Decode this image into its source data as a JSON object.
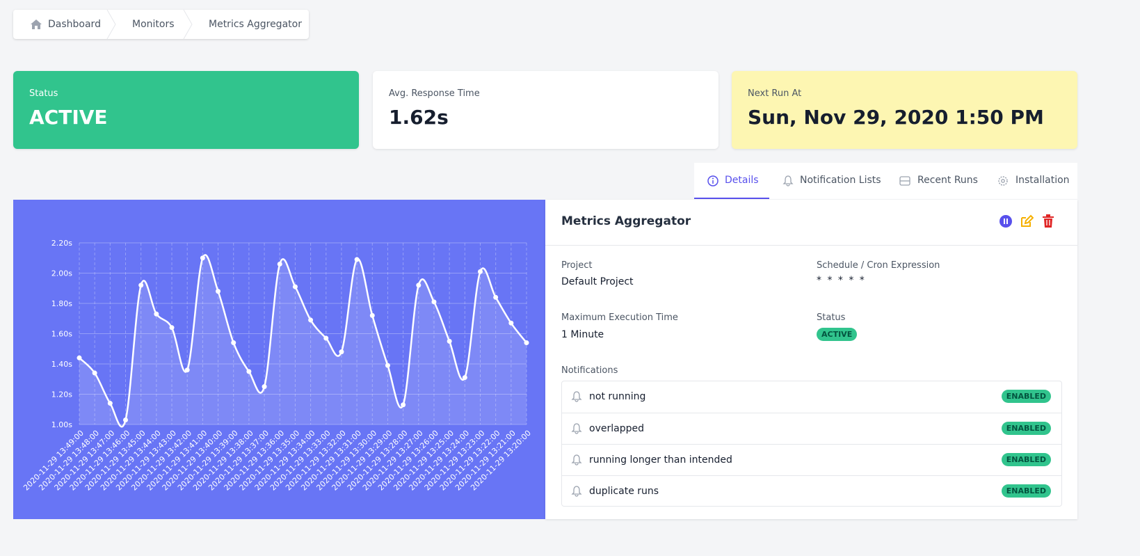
{
  "breadcrumbs": [
    "Dashboard",
    "Monitors",
    "Metrics Aggregator"
  ],
  "stats": [
    {
      "label": "Status",
      "value": "ACTIVE"
    },
    {
      "label": "Avg. Response Time",
      "value": "1.62s"
    },
    {
      "label": "Next Run At",
      "value": "Sun, Nov 29, 2020 1:50 PM"
    }
  ],
  "tabs": [
    "Details",
    "Notification Lists",
    "Recent Runs",
    "Installation"
  ],
  "details": {
    "title": "Metrics Aggregator",
    "fields": [
      {
        "label": "Project",
        "value": "Default Project"
      },
      {
        "label": "Schedule / Cron Expression",
        "value": "* * * * *"
      },
      {
        "label": "Maximum Execution Time",
        "value": "1 Minute"
      },
      {
        "label": "Status",
        "value": "ACTIVE"
      }
    ],
    "notifications_title": "Notifications",
    "notifications": [
      {
        "name": "not running",
        "state": "ENABLED"
      },
      {
        "name": "overlapped",
        "state": "ENABLED"
      },
      {
        "name": "running longer than intended",
        "state": "ENABLED"
      },
      {
        "name": "duplicate runs",
        "state": "ENABLED"
      }
    ]
  },
  "chart_data": {
    "type": "line",
    "color": "#ffffff",
    "grid": true,
    "categories": [
      "2020-11-29 13:49:00",
      "2020-11-29 13:48:00",
      "2020-11-29 13:47:00",
      "2020-11-29 13:46:00",
      "2020-11-29 13:45:00",
      "2020-11-29 13:44:00",
      "2020-11-29 13:43:00",
      "2020-11-29 13:42:00",
      "2020-11-29 13:41:00",
      "2020-11-29 13:40:00",
      "2020-11-29 13:39:00",
      "2020-11-29 13:38:00",
      "2020-11-29 13:37:00",
      "2020-11-29 13:36:00",
      "2020-11-29 13:35:00",
      "2020-11-29 13:34:00",
      "2020-11-29 13:33:00",
      "2020-11-29 13:32:00",
      "2020-11-29 13:31:00",
      "2020-11-29 13:30:00",
      "2020-11-29 13:29:00",
      "2020-11-29 13:28:00",
      "2020-11-29 13:27:00",
      "2020-11-29 13:26:00",
      "2020-11-29 13:25:00",
      "2020-11-29 13:24:00",
      "2020-11-29 13:23:00",
      "2020-11-29 13:22:00",
      "2020-11-29 13:21:00",
      "2020-11-29 13:20:00"
    ],
    "values": [
      1.44,
      1.34,
      1.14,
      1.03,
      1.92,
      1.73,
      1.64,
      1.36,
      2.1,
      1.88,
      1.54,
      1.35,
      1.25,
      2.06,
      1.91,
      1.69,
      1.57,
      1.48,
      2.09,
      1.72,
      1.39,
      1.13,
      1.92,
      1.81,
      1.55,
      1.31,
      2.01,
      1.84,
      1.67,
      1.54
    ],
    "ylim": [
      1.0,
      2.2
    ],
    "yticks": [
      {
        "value": 1.0,
        "label": "1.00s"
      },
      {
        "value": 1.2,
        "label": "1.20s"
      },
      {
        "value": 1.4,
        "label": "1.40s"
      },
      {
        "value": 1.6,
        "label": "1.60s"
      },
      {
        "value": 1.8,
        "label": "1.80s"
      },
      {
        "value": 2.0,
        "label": "2.00s"
      },
      {
        "value": 2.2,
        "label": "2.20s"
      }
    ]
  }
}
